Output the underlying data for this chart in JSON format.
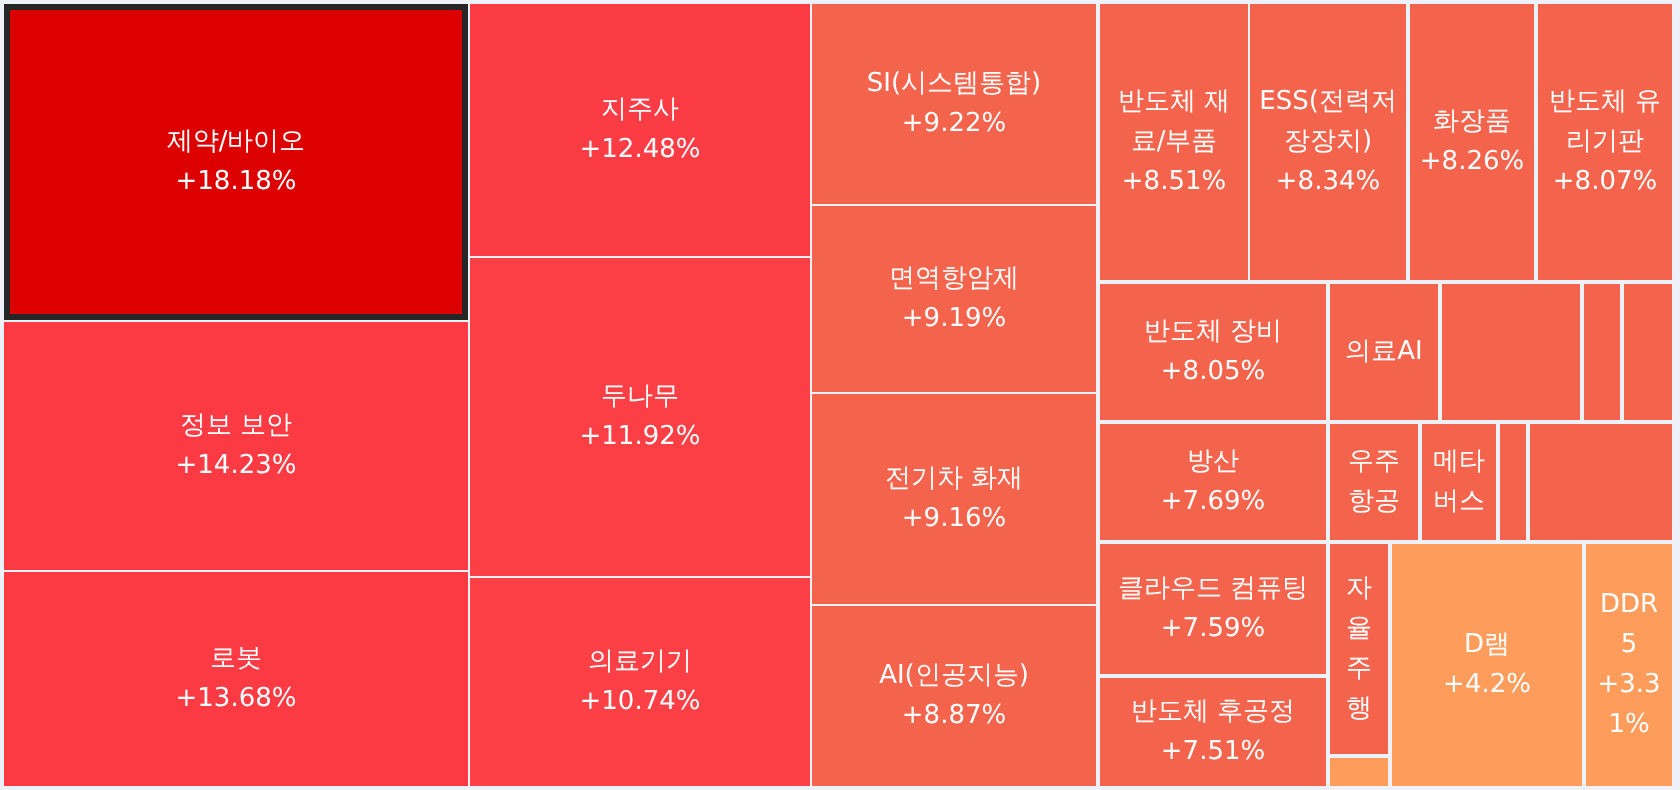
{
  "chart_data": {
    "type": "other",
    "categories": [
      "제약/바이오",
      "정보 보안",
      "로봇",
      "지주사",
      "두나무",
      "의료기기",
      "SI(시스템통합)",
      "면역항암제",
      "전기차 화재",
      "AI(인공지능)",
      "반도체 재료/부품",
      "ESS(전력저장장치)",
      "화장품",
      "반도체 유리기판",
      "반도체 장비",
      "의료AI",
      null,
      null,
      null,
      "방산",
      "우주항공",
      "메타버스",
      null,
      null,
      "클라우드 컴퓨팅",
      "반도체 후공정",
      "자율주행",
      null,
      "D램",
      "DDR5"
    ],
    "values": [
      18.18,
      14.23,
      13.68,
      12.48,
      11.92,
      10.74,
      9.22,
      9.19,
      9.16,
      8.87,
      8.51,
      8.34,
      8.26,
      8.07,
      8.05,
      null,
      null,
      null,
      null,
      7.69,
      null,
      null,
      null,
      null,
      7.59,
      7.51,
      null,
      null,
      4.2,
      3.31
    ],
    "value_labels": [
      "+18.18%",
      "+14.23%",
      "+13.68%",
      "+12.48%",
      "+11.92%",
      "+10.74%",
      "+9.22%",
      "+9.19%",
      "+9.16%",
      "+8.87%",
      "+8.51%",
      "+8.34%",
      "+8.26%",
      "+8.07%",
      "+8.05%",
      null,
      null,
      null,
      null,
      "+7.69%",
      null,
      null,
      null,
      null,
      "+7.59%",
      "+7.51%",
      null,
      null,
      "+4.2%",
      "+3.31%"
    ],
    "colors": [
      "#dc0000",
      "#fc3a43",
      "#fc3a43",
      "#fc3c45",
      "#fc3e45",
      "#fc4045",
      "#f4634b",
      "#f4634b",
      "#f4634b",
      "#f4634b",
      "#f4634b",
      "#f4634b",
      "#f4634b",
      "#f4634b",
      "#f4634b",
      "#f4634b",
      "#f4634b",
      "#f4634b",
      "#f4634b",
      "#f4634b",
      "#f4634b",
      "#f4634b",
      "#f4634b",
      "#f4634b",
      "#f4634b",
      "#f4634b",
      "#f4634b",
      "#fe9c5c",
      "#fe9c5c",
      "#fe9c5c"
    ]
  }
}
